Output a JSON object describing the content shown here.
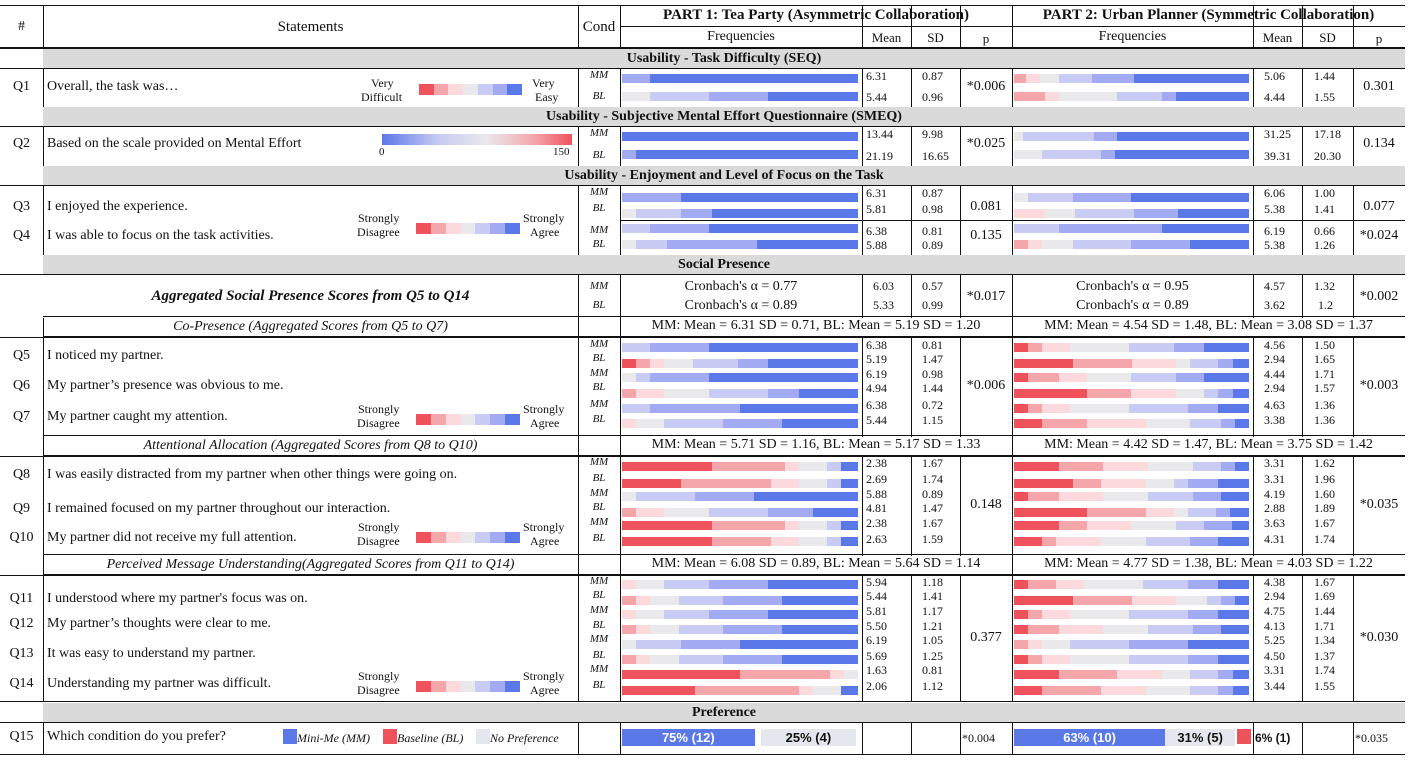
{
  "colors": {
    "c1": "#f0525c",
    "c2": "#f4a6ab",
    "c3": "#fbd9dc",
    "c4": "#e9e9ec",
    "c5": "#c8cbf3",
    "c6": "#a2aaf1",
    "c7": "#5a78e8",
    "mm": "#5a78e8",
    "bl": "#f0525c",
    "np": "#e6e6ee"
  },
  "header": {
    "num": "#",
    "statements": "Statements",
    "cond": "Cond",
    "part1": "PART 1: Tea Party (Asymmetric Collaboration)",
    "part2": "PART 2: Urban Planner (Symmetric Collaboration)",
    "freq": "Frequencies",
    "mean": "Mean",
    "sd": "SD",
    "p": "p"
  },
  "sections": {
    "seq": "Usability - Task Difficulty (SEQ)",
    "smeq": "Usability - Subjective Mental Effort Questionnaire (SMEQ)",
    "enjoy": "Usability - Enjoyment and Level of Focus on the Task",
    "social": "Social Presence",
    "pref": "Preference"
  },
  "scales": {
    "diff_lo": "Very",
    "diff_lo2": "Difficult",
    "diff_hi": "Very",
    "diff_hi2": "Easy",
    "smeq_min": "0",
    "smeq_max": "150",
    "sd1": "Strongly",
    "sd2": "Disagree",
    "sa1": "Strongly",
    "sa2": "Agree"
  },
  "agg": {
    "label": "Aggregated Social Presence Scores from Q5 to Q14",
    "p1_mm": "Cronbach's α = 0.77",
    "p1_bl": "Cronbach's α = 0.89",
    "p2_mm": "Cronbach's α = 0.95",
    "p2_bl": "Cronbach's α = 0.89",
    "p1_mm_mean": "6.03",
    "p1_mm_sd": "0.57",
    "p1_bl_mean": "5.33",
    "p1_bl_sd": "0.99",
    "p1_p": "*0.017",
    "p2_mm_mean": "4.57",
    "p2_mm_sd": "1.32",
    "p2_bl_mean": "3.62",
    "p2_bl_sd": "1.2",
    "p2_p": "*0.002"
  },
  "subscales": {
    "copresence": {
      "label": "Co-Presence (Aggregated Scores from Q5 to Q7)",
      "p1": "MM: Mean = 6.31 SD = 0.71, BL: Mean = 5.19 SD = 1.20",
      "p2": "MM: Mean = 4.54 SD = 1.48, BL: Mean = 3.08 SD = 1.37"
    },
    "attention": {
      "label": "Attentional Allocation (Aggregated Scores from Q8 to Q10)",
      "p1": "MM: Mean = 5.71 SD = 1.16, BL: Mean = 5.17 SD = 1.33",
      "p2": "MM: Mean = 4.42 SD = 1.47, BL: Mean = 3.75 SD = 1.42"
    },
    "message": {
      "label": "Perceived Message Understanding(Aggregated Scores from Q11 to Q14)",
      "p1": "MM: Mean = 6.08 SD = 0.89, BL: Mean = 5.64 SD = 1.14",
      "p2": "MM: Mean = 4.77 SD = 1.38, BL: Mean = 4.03 SD = 1.22"
    }
  },
  "questions": [
    {
      "id": "Q1",
      "text": "Overall, the task was…",
      "p1_p": "*0.006",
      "p2_p": "0.301",
      "rows": [
        {
          "cond": "MM",
          "p1": {
            "mean": "6.31",
            "sd": "0.87",
            "seg": [
              0,
              0,
              0,
              0,
              0,
              12,
              88
            ]
          },
          "p2": {
            "mean": "5.06",
            "sd": "1.44",
            "seg": [
              0,
              5,
              6,
              8,
              14,
              18,
              49
            ]
          }
        },
        {
          "cond": "BL",
          "p1": {
            "mean": "5.44",
            "sd": "0.96",
            "seg": [
              0,
              0,
              0,
              12,
              25,
              25,
              38
            ]
          },
          "p2": {
            "mean": "4.44",
            "sd": "1.55",
            "seg": [
              0,
              13,
              6,
              25,
              19,
              6,
              31
            ]
          }
        }
      ]
    },
    {
      "id": "Q2",
      "text": "Based on the scale provided on Mental Effort",
      "p1_p": "*0.025",
      "p2_p": "0.134",
      "rows": [
        {
          "cond": "MM",
          "p1": {
            "mean": "13.44",
            "sd": "9.98",
            "seg": [
              0,
              0,
              0,
              0,
              0,
              0,
              100
            ]
          },
          "p2": {
            "mean": "31.25",
            "sd": "17.18",
            "seg": [
              0,
              0,
              0,
              4,
              30,
              10,
              56
            ]
          }
        },
        {
          "cond": "BL",
          "p1": {
            "mean": "21.19",
            "sd": "16.65",
            "seg": [
              0,
              0,
              0,
              0,
              0,
              6,
              94
            ]
          },
          "p2": {
            "mean": "39.31",
            "sd": "20.30",
            "seg": [
              0,
              0,
              0,
              12,
              25,
              6,
              57
            ]
          }
        }
      ]
    },
    {
      "id": "Q3",
      "text": "I enjoyed the experience.",
      "p1_p": "0.081",
      "p2_p": "0.077",
      "rows": [
        {
          "cond": "MM",
          "p1": {
            "mean": "6.31",
            "sd": "0.87",
            "seg": [
              0,
              0,
              0,
              0,
              0,
              25,
              75
            ]
          },
          "p2": {
            "mean": "6.06",
            "sd": "1.00",
            "seg": [
              0,
              0,
              0,
              6,
              19,
              25,
              50
            ]
          }
        },
        {
          "cond": "BL",
          "p1": {
            "mean": "5.81",
            "sd": "0.98",
            "seg": [
              0,
              0,
              0,
              6,
              19,
              13,
              62
            ]
          },
          "p2": {
            "mean": "5.38",
            "sd": "1.41",
            "seg": [
              0,
              0,
              13,
              13,
              25,
              19,
              30
            ]
          }
        }
      ]
    },
    {
      "id": "Q4",
      "text": "I was able to focus on the task activities.",
      "p1_p": "0.135",
      "p2_p": "*0.024",
      "rows": [
        {
          "cond": "MM",
          "p1": {
            "mean": "6.38",
            "sd": "0.81",
            "seg": [
              0,
              0,
              0,
              0,
              12,
              25,
              63
            ]
          },
          "p2": {
            "mean": "6.19",
            "sd": "0.66",
            "seg": [
              0,
              0,
              0,
              0,
              19,
              44,
              37
            ]
          }
        },
        {
          "cond": "BL",
          "p1": {
            "mean": "5.88",
            "sd": "0.89",
            "seg": [
              0,
              0,
              0,
              6,
              13,
              38,
              43
            ]
          },
          "p2": {
            "mean": "5.38",
            "sd": "1.26",
            "seg": [
              0,
              6,
              6,
              13,
              25,
              25,
              25
            ]
          }
        }
      ]
    },
    {
      "id": "Q5",
      "text": "I noticed my partner.",
      "rows": [
        {
          "cond": "MM",
          "p1": {
            "mean": "6.38",
            "sd": "0.81",
            "seg": [
              0,
              0,
              0,
              0,
              12,
              25,
              63
            ]
          },
          "p2": {
            "mean": "4.56",
            "sd": "1.50",
            "seg": [
              6,
              6,
              12,
              25,
              19,
              13,
              19
            ]
          }
        },
        {
          "cond": "BL",
          "p1": {
            "mean": "5.19",
            "sd": "1.47",
            "seg": [
              6,
              6,
              6,
              12,
              19,
              13,
              38
            ]
          },
          "p2": {
            "mean": "2.94",
            "sd": "1.65",
            "seg": [
              25,
              25,
              19,
              6,
              12,
              6,
              7
            ]
          }
        }
      ]
    },
    {
      "id": "Q6",
      "text": "My partner’s presence was obvious to me.",
      "rows": [
        {
          "cond": "MM",
          "p1": {
            "mean": "6.19",
            "sd": "0.98",
            "seg": [
              0,
              0,
              0,
              6,
              6,
              25,
              63
            ]
          },
          "p2": {
            "mean": "4.44",
            "sd": "1.71",
            "seg": [
              6,
              13,
              12,
              19,
              19,
              12,
              19
            ]
          }
        },
        {
          "cond": "BL",
          "p1": {
            "mean": "4.94",
            "sd": "1.44",
            "seg": [
              0,
              6,
              12,
              19,
              25,
              13,
              25
            ]
          },
          "p2": {
            "mean": "2.94",
            "sd": "1.57",
            "seg": [
              31,
              19,
              19,
              12,
              6,
              6,
              7
            ]
          }
        }
      ]
    },
    {
      "id": "Q7",
      "text": "My partner caught my attention.",
      "rows": [
        {
          "cond": "MM",
          "p1": {
            "mean": "6.38",
            "sd": "0.72",
            "seg": [
              0,
              0,
              0,
              0,
              12,
              38,
              50
            ]
          },
          "p2": {
            "mean": "4.63",
            "sd": "1.36",
            "seg": [
              6,
              6,
              12,
              25,
              25,
              13,
              13
            ]
          }
        },
        {
          "cond": "BL",
          "p1": {
            "mean": "5.44",
            "sd": "1.15",
            "seg": [
              0,
              0,
              6,
              12,
              25,
              25,
              32
            ]
          },
          "p2": {
            "mean": "3.38",
            "sd": "1.36",
            "seg": [
              12,
              19,
              25,
              19,
              13,
              6,
              6
            ]
          }
        }
      ]
    },
    {
      "id": "Q8",
      "text": "I was easily distracted from my partner when other things were going on.",
      "rows": [
        {
          "cond": "MM",
          "p1": {
            "mean": "2.38",
            "sd": "1.67",
            "seg": [
              38,
              31,
              6,
              12,
              6,
              0,
              7
            ]
          },
          "p2": {
            "mean": "3.31",
            "sd": "1.62",
            "seg": [
              19,
              19,
              19,
              19,
              12,
              6,
              6
            ]
          }
        },
        {
          "cond": "BL",
          "p1": {
            "mean": "2.69",
            "sd": "1.74",
            "seg": [
              25,
              38,
              12,
              12,
              6,
              0,
              7
            ]
          },
          "p2": {
            "mean": "3.31",
            "sd": "1.96",
            "seg": [
              25,
              12,
              19,
              12,
              6,
              13,
              13
            ]
          }
        }
      ]
    },
    {
      "id": "Q9",
      "text": "I remained focused on my partner throughout our interaction.",
      "rows": [
        {
          "cond": "MM",
          "p1": {
            "mean": "5.88",
            "sd": "0.89",
            "seg": [
              0,
              0,
              0,
              6,
              25,
              25,
              44
            ]
          },
          "p2": {
            "mean": "4.19",
            "sd": "1.60",
            "seg": [
              6,
              13,
              19,
              19,
              19,
              12,
              12
            ]
          }
        },
        {
          "cond": "BL",
          "p1": {
            "mean": "4.81",
            "sd": "1.47",
            "seg": [
              0,
              6,
              12,
              19,
              25,
              19,
              19
            ]
          },
          "p2": {
            "mean": "2.88",
            "sd": "1.89",
            "seg": [
              31,
              25,
              12,
              6,
              12,
              6,
              8
            ]
          }
        }
      ]
    },
    {
      "id": "Q10",
      "text": "My partner did not receive my full attention.",
      "rows": [
        {
          "cond": "MM",
          "p1": {
            "mean": "2.38",
            "sd": "1.67",
            "seg": [
              38,
              31,
              6,
              12,
              6,
              0,
              7
            ]
          },
          "p2": {
            "mean": "3.63",
            "sd": "1.67",
            "seg": [
              19,
              12,
              19,
              19,
              12,
              12,
              7
            ]
          }
        },
        {
          "cond": "BL",
          "p1": {
            "mean": "2.63",
            "sd": "1.59",
            "seg": [
              38,
              25,
              12,
              12,
              6,
              0,
              7
            ]
          },
          "p2": {
            "mean": "4.31",
            "sd": "1.74",
            "seg": [
              12,
              6,
              19,
              19,
              19,
              12,
              13
            ]
          }
        }
      ]
    },
    {
      "id": "Q11",
      "text": "I understood where my partner's focus was on.",
      "rows": [
        {
          "cond": "MM",
          "p1": {
            "mean": "5.94",
            "sd": "1.18",
            "seg": [
              0,
              0,
              6,
              12,
              19,
              25,
              38
            ]
          },
          "p2": {
            "mean": "4.38",
            "sd": "1.67",
            "seg": [
              6,
              12,
              12,
              25,
              19,
              13,
              13
            ]
          }
        },
        {
          "cond": "BL",
          "p1": {
            "mean": "5.44",
            "sd": "1.41",
            "seg": [
              0,
              6,
              6,
              12,
              19,
              25,
              32
            ]
          },
          "p2": {
            "mean": "2.94",
            "sd": "1.69",
            "seg": [
              25,
              25,
              19,
              13,
              6,
              6,
              6
            ]
          }
        }
      ]
    },
    {
      "id": "Q12",
      "text": "My partner’s thoughts were clear to me.",
      "rows": [
        {
          "cond": "MM",
          "p1": {
            "mean": "5.81",
            "sd": "1.17",
            "seg": [
              0,
              0,
              6,
              12,
              19,
              25,
              38
            ]
          },
          "p2": {
            "mean": "4.75",
            "sd": "1.44",
            "seg": [
              6,
              6,
              12,
              25,
              25,
              13,
              13
            ]
          }
        },
        {
          "cond": "BL",
          "p1": {
            "mean": "5.50",
            "sd": "1.21",
            "seg": [
              0,
              6,
              6,
              12,
              19,
              25,
              32
            ]
          },
          "p2": {
            "mean": "4.13",
            "sd": "1.71",
            "seg": [
              6,
              13,
              19,
              19,
              19,
              12,
              12
            ]
          }
        }
      ]
    },
    {
      "id": "Q13",
      "text": "It was easy to understand my partner.",
      "rows": [
        {
          "cond": "MM",
          "p1": {
            "mean": "6.19",
            "sd": "1.05",
            "seg": [
              0,
              0,
              0,
              6,
              19,
              25,
              50
            ]
          },
          "p2": {
            "mean": "5.25",
            "sd": "1.34",
            "seg": [
              0,
              6,
              6,
              12,
              25,
              25,
              26
            ]
          }
        },
        {
          "cond": "BL",
          "p1": {
            "mean": "5.69",
            "sd": "1.25",
            "seg": [
              0,
              6,
              6,
              12,
              19,
              25,
              32
            ]
          },
          "p2": {
            "mean": "4.50",
            "sd": "1.37",
            "seg": [
              6,
              6,
              12,
              25,
              25,
              13,
              13
            ]
          }
        }
      ]
    },
    {
      "id": "Q14",
      "text": "Understanding my partner was difficult.",
      "rows": [
        {
          "cond": "MM",
          "p1": {
            "mean": "1.63",
            "sd": "0.81",
            "seg": [
              50,
              38,
              6,
              6,
              0,
              0,
              0
            ]
          },
          "p2": {
            "mean": "3.31",
            "sd": "1.74",
            "seg": [
              19,
              25,
              19,
              12,
              12,
              6,
              7
            ]
          }
        },
        {
          "cond": "BL",
          "p1": {
            "mean": "2.06",
            "sd": "1.12",
            "seg": [
              31,
              44,
              6,
              12,
              0,
              0,
              7
            ]
          },
          "p2": {
            "mean": "3.44",
            "sd": "1.55",
            "seg": [
              12,
              25,
              19,
              19,
              12,
              6,
              7
            ]
          }
        }
      ]
    }
  ],
  "group_p": {
    "p1_q5_7": "*0.006",
    "p2_q5_7": "*0.003",
    "p1_q8_10": "0.148",
    "p2_q8_10": "*0.035",
    "p1_q11_14": "0.377",
    "p2_q11_14": "*0.030"
  },
  "q15": {
    "id": "Q15",
    "text": "Which condition do you prefer?",
    "legend_mm": "Mini-Me (MM)",
    "legend_bl": "Baseline (BL)",
    "legend_np": "No Preference",
    "p1_mm": "75% (12)",
    "p1_np": "25% (4)",
    "p1_mm_pct": 75,
    "p2_mm": "63% (10)",
    "p2_np": "31% (5)",
    "p2_bl": "6% (1)",
    "p2_mm_pct": 63,
    "p1_p": "*0.004",
    "p2_p": "*0.035"
  }
}
